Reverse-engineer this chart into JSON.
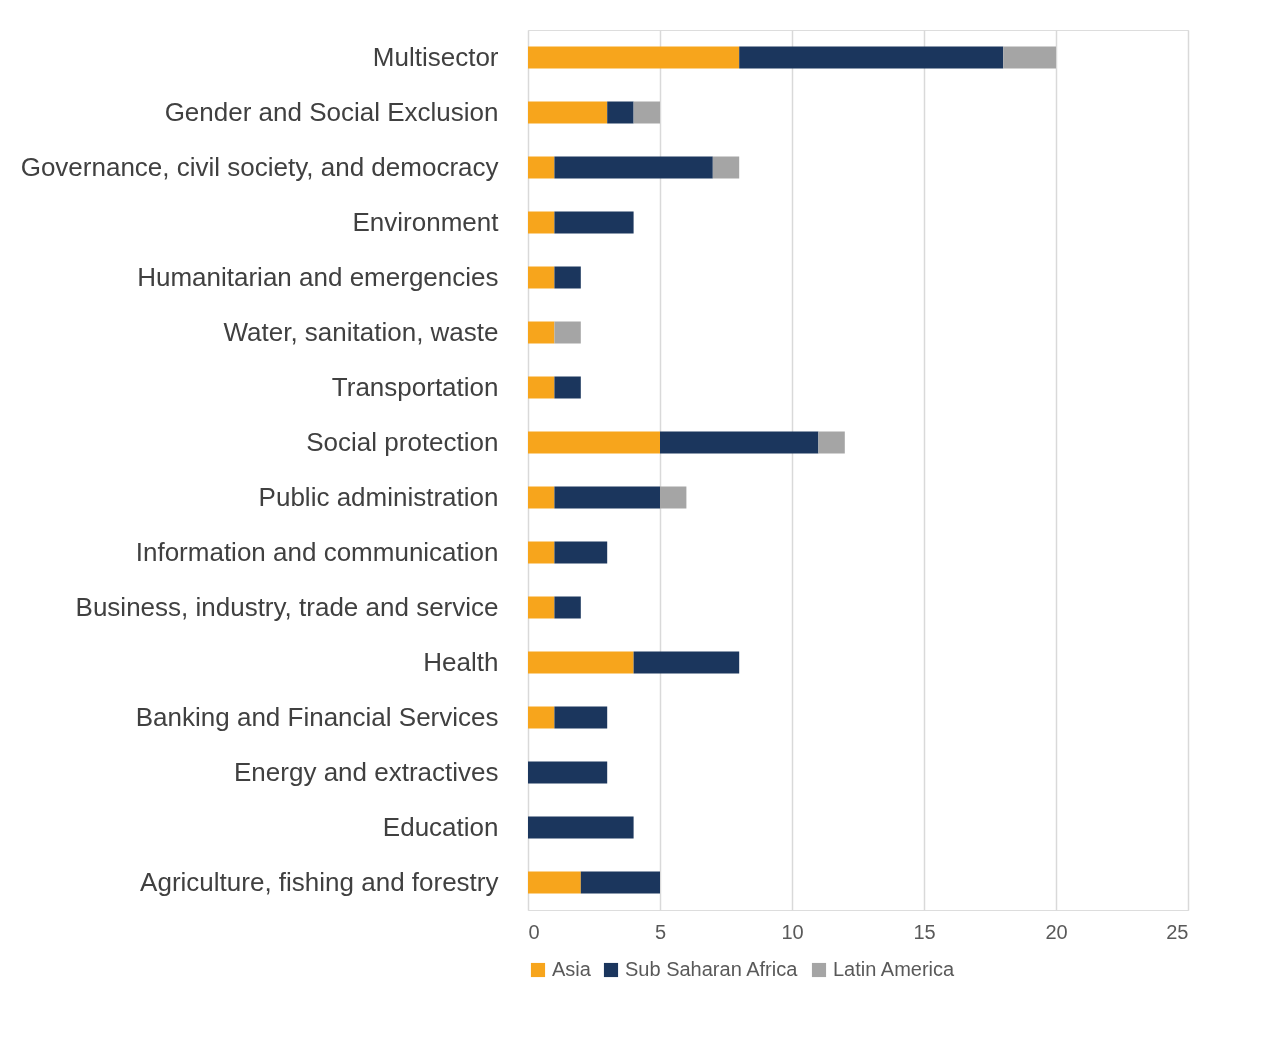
{
  "chart_data": {
    "type": "bar",
    "orientation": "horizontal",
    "stacked": true,
    "categories": [
      "Multisector",
      "Gender and Social Exclusion",
      "Governance, civil society, and democracy",
      "Environment",
      "Humanitarian and emergencies",
      "Water, sanitation, waste",
      "Transportation",
      "Social protection",
      "Public administration",
      "Information and communication",
      "Business, industry, trade and service",
      "Health",
      "Banking and Financial Services",
      "Energy and extractives",
      "Education",
      "Agriculture, fishing and forestry"
    ],
    "series": [
      {
        "name": "Asia",
        "color": "#f7a51c",
        "values": [
          8,
          3,
          1,
          1,
          1,
          1,
          1,
          5,
          1,
          1,
          1,
          4,
          1,
          0,
          0,
          2
        ]
      },
      {
        "name": "Sub Saharan Africa",
        "color": "#1b365d",
        "values": [
          10,
          1,
          6,
          3,
          1,
          0,
          1,
          6,
          4,
          2,
          1,
          4,
          2,
          3,
          4,
          3
        ]
      },
      {
        "name": "Latin America",
        "color": "#a5a5a5",
        "values": [
          2,
          1,
          1,
          0,
          0,
          1,
          0,
          1,
          1,
          0,
          0,
          0,
          0,
          0,
          0,
          0
        ]
      }
    ],
    "xlim": [
      0,
      25
    ],
    "xticks": [
      0,
      5,
      10,
      15,
      20,
      25
    ],
    "grid": "x",
    "legend": "bottom"
  }
}
